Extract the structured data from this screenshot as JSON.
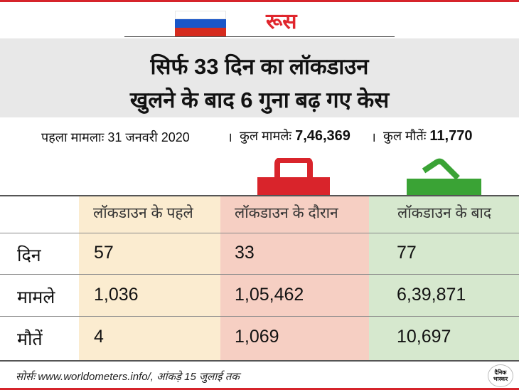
{
  "country": {
    "name": "रूस",
    "flag_colors": [
      "#ffffff",
      "#1a56c8",
      "#d52b1e"
    ]
  },
  "headline": {
    "line1": "सिर्फ 33 दिन का लॉकडाउन",
    "line2": "खुलने के बाद 6 गुना बढ़ गए केस"
  },
  "info": {
    "first_case_label": "पहला मामलाः",
    "first_case_value": "31 जनवरी 2020",
    "separator": "।",
    "total_cases_label": "कुल मामलेः",
    "total_cases_value": "7,46,369",
    "total_deaths_label": "कुल मौतेंः",
    "total_deaths_value": "11,770"
  },
  "table": {
    "columns": [
      "लॉकडाउन के पहले",
      "लॉकडाउन के दौरान",
      "लॉकडाउन के बाद"
    ],
    "column_colors": [
      "#fbecd0",
      "#f6cfc3",
      "#d6e8ce"
    ],
    "rows": [
      {
        "label": "दिन",
        "values": [
          "57",
          "33",
          "77"
        ]
      },
      {
        "label": "मामले",
        "values": [
          "1,036",
          "1,05,462",
          "6,39,871"
        ]
      },
      {
        "label": "मौतें",
        "values": [
          "4",
          "1,069",
          "10,697"
        ]
      }
    ]
  },
  "icons": {
    "lock_closed_color": "#d9242b",
    "lock_open_color": "#3aa335"
  },
  "source": "सोर्सः www.worldometers.info/, आंकड़े 15 जुलाई तक",
  "logo": {
    "line1": "दैनिक",
    "line2": "भास्कर"
  }
}
